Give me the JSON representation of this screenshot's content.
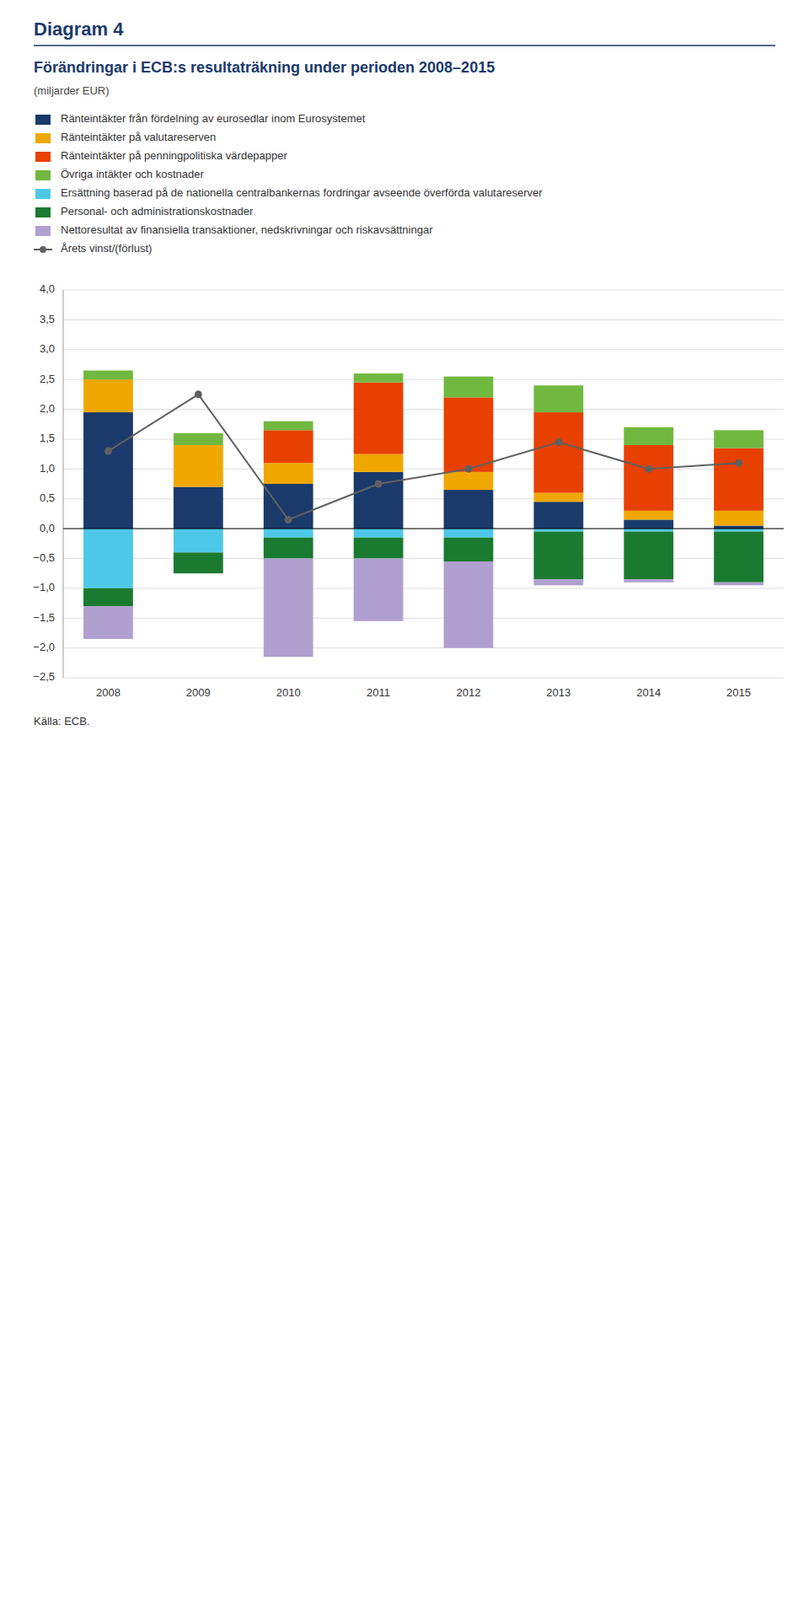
{
  "chart_data": {
    "type": "bar",
    "title": "Diagram 4",
    "subtitle": "Förändringar i ECB:s resultaträkning under perioden 2008–2015",
    "annotations": [
      "(miljarder EUR)",
      "Källa: ECB."
    ],
    "categories": [
      "2008",
      "2009",
      "2010",
      "2011",
      "2012",
      "2013",
      "2014",
      "2015"
    ],
    "stacked": true,
    "grid": true,
    "legend": "top left",
    "series": [
      {
        "name": "Ränteintäkter från fördelning av eurosedlar inom Eurosystemet",
        "color": "#1a3a6b",
        "values": [
          1.95,
          0.7,
          0.75,
          0.95,
          0.65,
          0.45,
          0.15,
          0.05
        ]
      },
      {
        "name": "Ränteintäkter på valutareserven",
        "color": "#f0a800",
        "values": [
          0.55,
          0.7,
          0.35,
          0.3,
          0.3,
          0.15,
          0.15,
          0.25
        ]
      },
      {
        "name": "Ränteintäkter på penningpolitiska värdepapper",
        "color": "#e84000",
        "values": [
          0.0,
          0.0,
          0.55,
          1.2,
          1.25,
          1.35,
          1.1,
          1.05
        ]
      },
      {
        "name": "Övriga intäkter och kostnader",
        "color": "#70b840",
        "values": [
          0.15,
          0.2,
          0.15,
          0.15,
          0.35,
          0.45,
          0.3,
          0.3
        ]
      },
      {
        "name": "Ersättning baserad på de nationella centralbankernas fordringar avseende överförda valutareserver",
        "color": "#4ec8e8",
        "values": [
          -1.0,
          -0.4,
          -0.15,
          -0.15,
          -0.15,
          -0.05,
          -0.05,
          -0.05
        ]
      },
      {
        "name": "Personal- och administrationskostnader",
        "color": "#1a7a30",
        "values": [
          -0.3,
          -0.35,
          -0.35,
          -0.35,
          -0.4,
          -0.8,
          -0.8,
          -0.85
        ]
      },
      {
        "name": "Nettoresultat av finansiella transaktioner, nedskrivningar och riskavsättningar",
        "color": "#b0a0d0",
        "values": [
          -0.55,
          0.0,
          -1.65,
          -1.05,
          -1.45,
          -0.1,
          -0.05,
          -0.05
        ]
      },
      {
        "name": "Årets vinst/(förlust)",
        "type": "line",
        "color": "#606060",
        "marker": "circle",
        "values": [
          1.3,
          2.25,
          0.15,
          0.75,
          1.0,
          1.45,
          1.0,
          1.1
        ]
      }
    ],
    "ylim": [
      -2.5,
      4.0
    ],
    "yticks": [
      {
        "value": -2.5,
        "label": "−2,5"
      },
      {
        "value": -2.0,
        "label": "−2,0"
      },
      {
        "value": -1.5,
        "label": "−1,5"
      },
      {
        "value": -1.0,
        "label": "−1,0"
      },
      {
        "value": -0.5,
        "label": "−0,5"
      },
      {
        "value": 0.0,
        "label": "0,0"
      },
      {
        "value": 0.5,
        "label": "0,5"
      },
      {
        "value": 1.0,
        "label": "1,0"
      },
      {
        "value": 1.5,
        "label": "1,5"
      },
      {
        "value": 2.0,
        "label": "2,0"
      },
      {
        "value": 2.5,
        "label": "2,5"
      },
      {
        "value": 3.0,
        "label": "3,0"
      },
      {
        "value": 3.5,
        "label": "3,5"
      },
      {
        "value": 4.0,
        "label": "4,0"
      }
    ]
  }
}
